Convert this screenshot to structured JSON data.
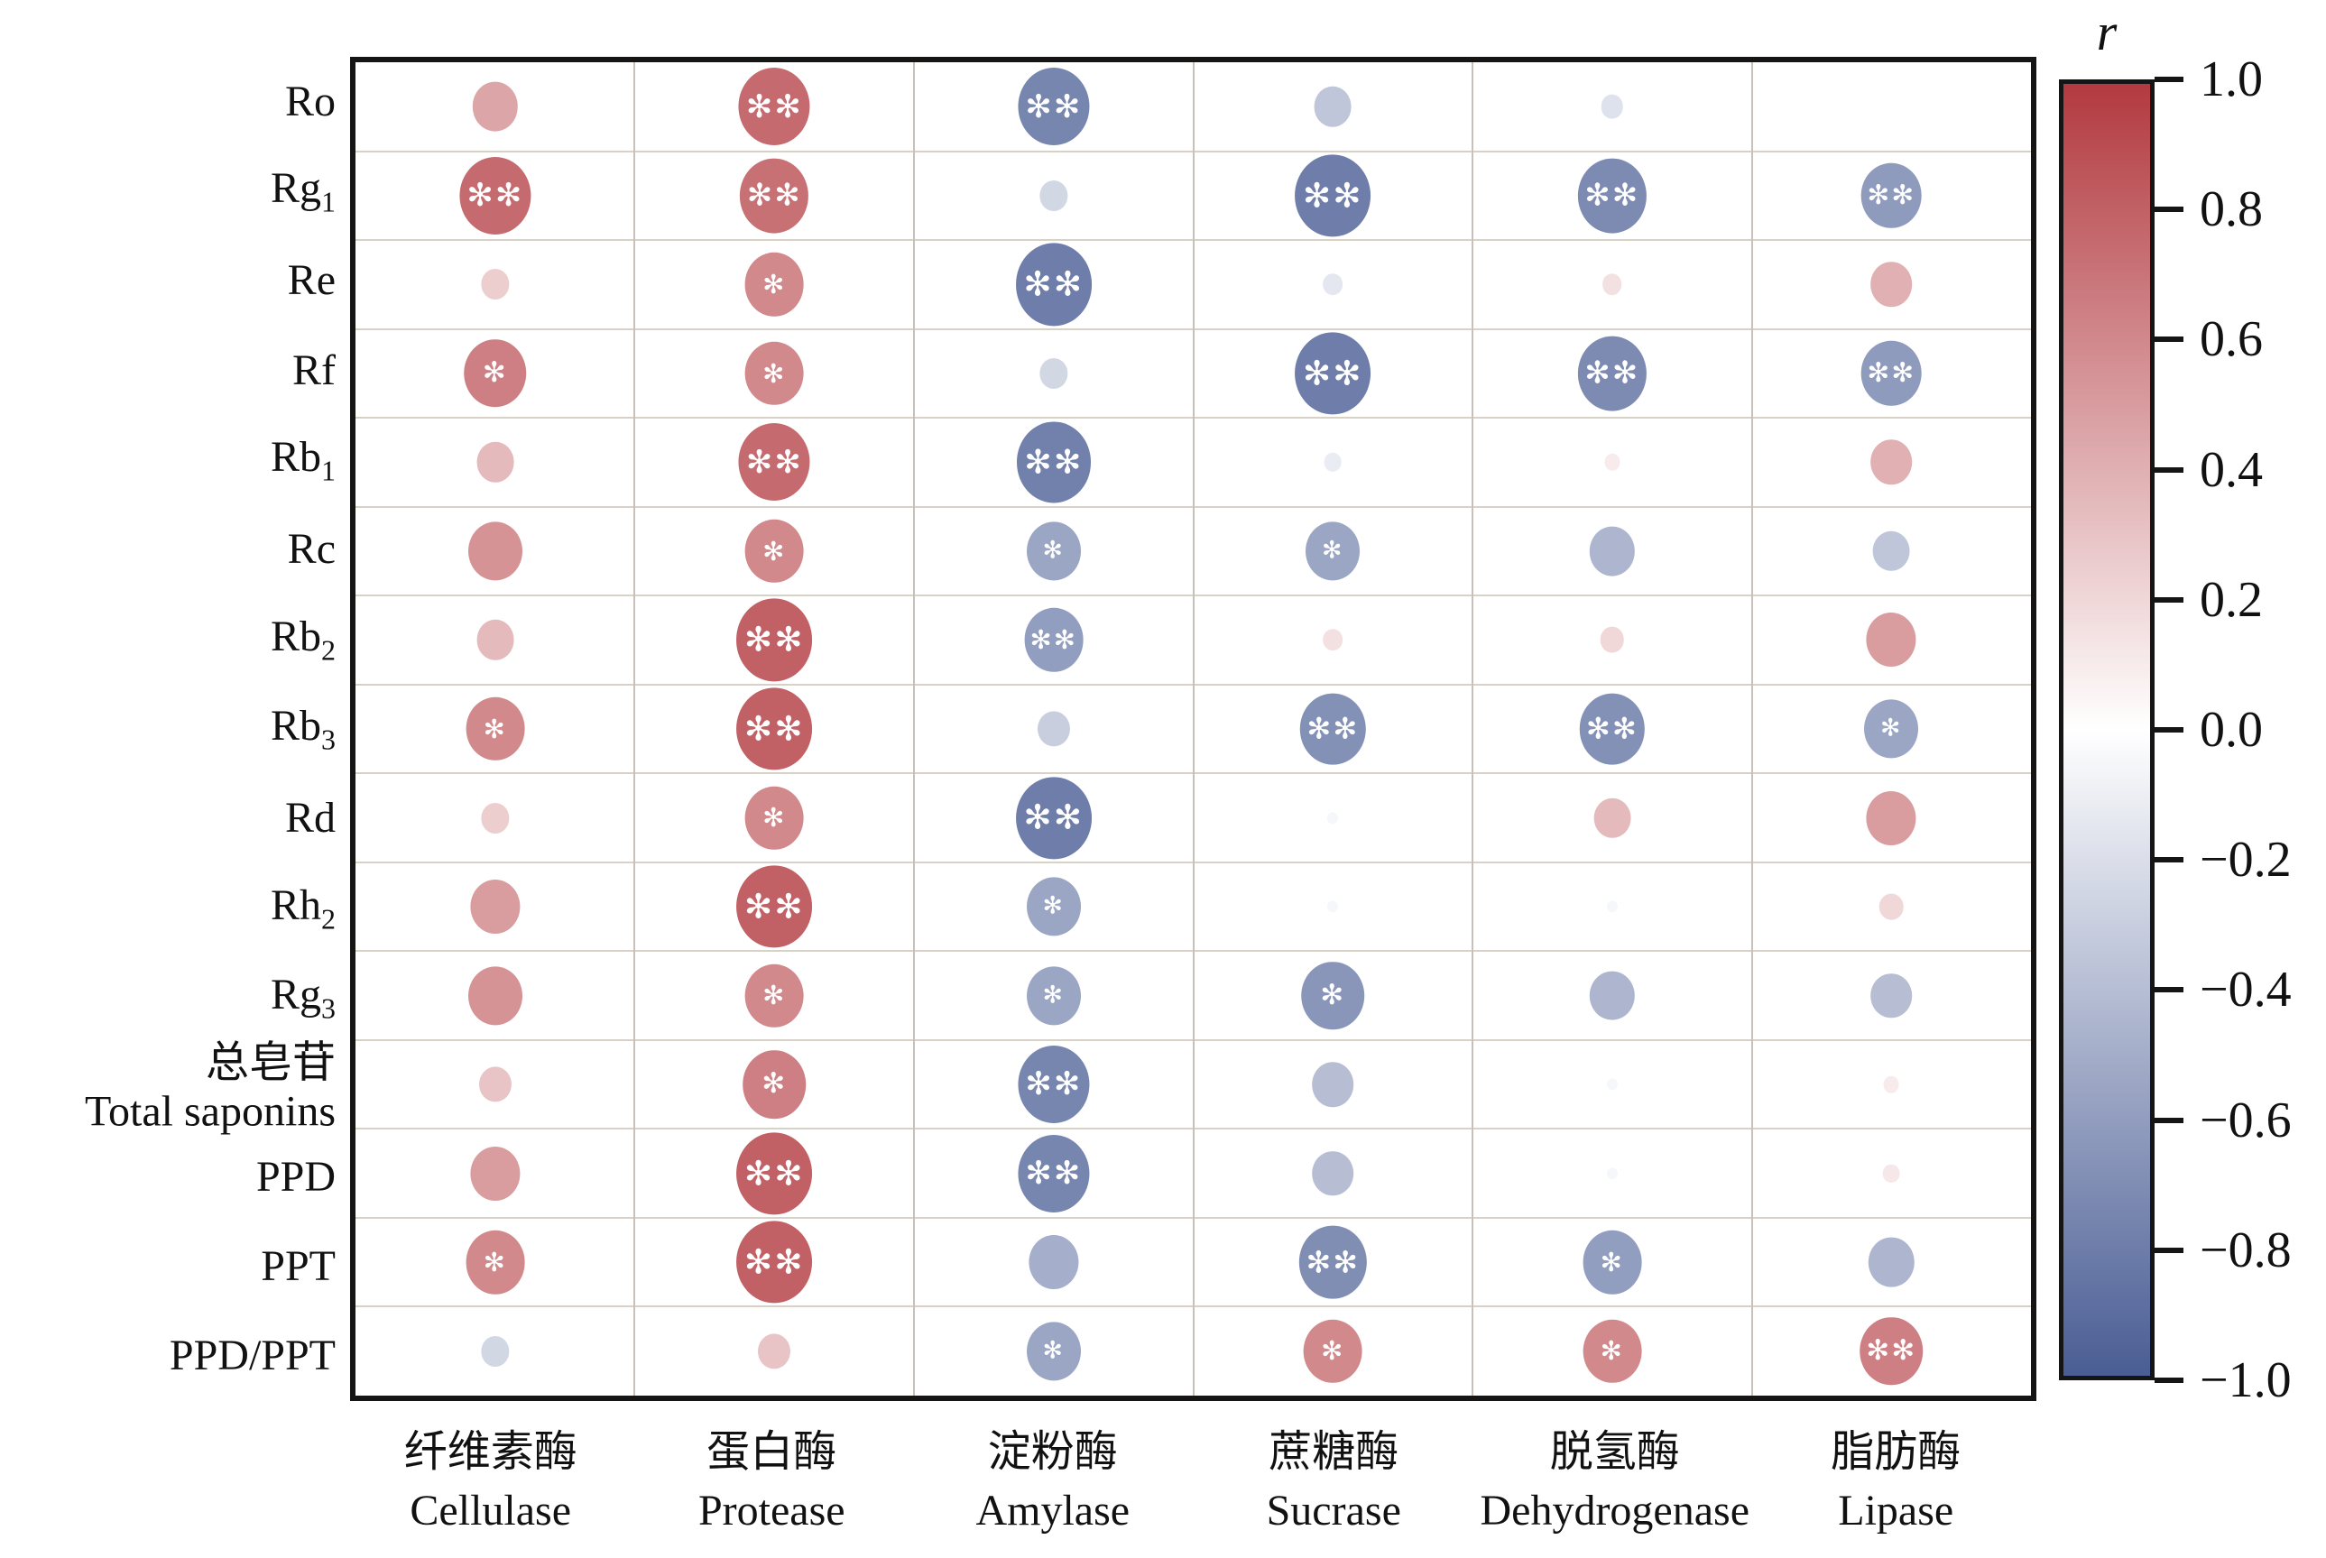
{
  "colorbar": {
    "title": "r",
    "tick_labels": [
      "1.0",
      "0.8",
      "0.6",
      "0.4",
      "0.2",
      "0.0",
      "−0.2",
      "−0.4",
      "−0.6",
      "−0.8",
      "−1.0"
    ],
    "tick_values": [
      1.0,
      0.8,
      0.6,
      0.4,
      0.2,
      0.0,
      -0.2,
      -0.4,
      -0.6,
      -0.8,
      -1.0
    ],
    "color_positive": "#b23a40",
    "color_zero": "#ffffff",
    "color_negative": "#4a5d94"
  },
  "chart_data": {
    "type": "heatmap",
    "subtype": "correlation-bubble-matrix",
    "legend_title": "r",
    "value_range": [
      -1,
      1
    ],
    "grid": true,
    "significance_note": "* p<0.05, ** p<0.01 shown as white asterisks inside bubbles",
    "rows": [
      {
        "label": "Ro"
      },
      {
        "label": "Rg_1"
      },
      {
        "label": "Re"
      },
      {
        "label": "Rf"
      },
      {
        "label": "Rb_1"
      },
      {
        "label": "Rc"
      },
      {
        "label": "Rb_2"
      },
      {
        "label": "Rb_3"
      },
      {
        "label": "Rd"
      },
      {
        "label": "Rh_2"
      },
      {
        "label": "Rg_3"
      },
      {
        "label_zh": "总皂苷",
        "label": "Total saponins"
      },
      {
        "label": "PPD"
      },
      {
        "label": "PPT"
      },
      {
        "label": "PPD/PPT"
      }
    ],
    "columns": [
      {
        "zh": "纤维素酶",
        "en": "Cellulase"
      },
      {
        "zh": "蛋白酶",
        "en": "Protease"
      },
      {
        "zh": "淀粉酶",
        "en": "Amylase"
      },
      {
        "zh": "蔗糖酶",
        "en": "Sucrase"
      },
      {
        "zh": "脱氢酶",
        "en": "Dehydrogenase"
      },
      {
        "zh": "脂肪酶",
        "en": "Lipase"
      }
    ],
    "values": [
      [
        0.45,
        0.75,
        -0.75,
        -0.35,
        -0.18,
        0.0
      ],
      [
        0.75,
        0.72,
        -0.25,
        -0.8,
        -0.72,
        -0.62
      ],
      [
        0.25,
        0.6,
        -0.8,
        -0.15,
        0.15,
        0.4
      ],
      [
        0.65,
        0.6,
        -0.25,
        -0.8,
        -0.72,
        -0.62
      ],
      [
        0.35,
        0.75,
        -0.78,
        -0.12,
        0.1,
        0.4
      ],
      [
        0.55,
        0.6,
        -0.55,
        -0.55,
        -0.45,
        -0.35
      ],
      [
        0.35,
        0.8,
        -0.6,
        0.15,
        0.2,
        0.5
      ],
      [
        0.6,
        0.8,
        -0.3,
        -0.68,
        -0.68,
        -0.55
      ],
      [
        0.25,
        0.6,
        -0.8,
        -0.05,
        0.35,
        0.5
      ],
      [
        0.5,
        0.8,
        -0.55,
        -0.05,
        -0.05,
        0.2
      ],
      [
        0.55,
        0.6,
        -0.55,
        -0.65,
        -0.45,
        -0.4
      ],
      [
        0.3,
        0.65,
        -0.75,
        -0.4,
        -0.05,
        0.1
      ],
      [
        0.5,
        0.8,
        -0.75,
        -0.4,
        -0.05,
        0.12
      ],
      [
        0.6,
        0.8,
        -0.5,
        -0.7,
        -0.6,
        -0.45
      ],
      [
        -0.25,
        0.3,
        -0.55,
        0.6,
        0.6,
        0.65
      ]
    ],
    "significance": [
      [
        "",
        "**",
        "**",
        "",
        "",
        ""
      ],
      [
        "**",
        "**",
        "",
        "**",
        "**",
        "**"
      ],
      [
        "",
        "*",
        "**",
        "",
        "",
        ""
      ],
      [
        "*",
        "*",
        "",
        "**",
        "**",
        "**"
      ],
      [
        "",
        "**",
        "**",
        "",
        "",
        ""
      ],
      [
        "",
        "*",
        "*",
        "*",
        "",
        ""
      ],
      [
        "",
        "**",
        "**",
        "",
        "",
        ""
      ],
      [
        "*",
        "**",
        "",
        "**",
        "**",
        "*"
      ],
      [
        "",
        "*",
        "**",
        "",
        "",
        ""
      ],
      [
        "",
        "**",
        "*",
        "",
        "",
        ""
      ],
      [
        "",
        "*",
        "*",
        "*",
        "",
        ""
      ],
      [
        "",
        "*",
        "**",
        "",
        "",
        ""
      ],
      [
        "",
        "**",
        "**",
        "",
        "",
        ""
      ],
      [
        "*",
        "**",
        "",
        "**",
        "*",
        ""
      ],
      [
        "",
        "",
        "*",
        "*",
        "*",
        "**"
      ]
    ],
    "star_glyph": "✻"
  }
}
